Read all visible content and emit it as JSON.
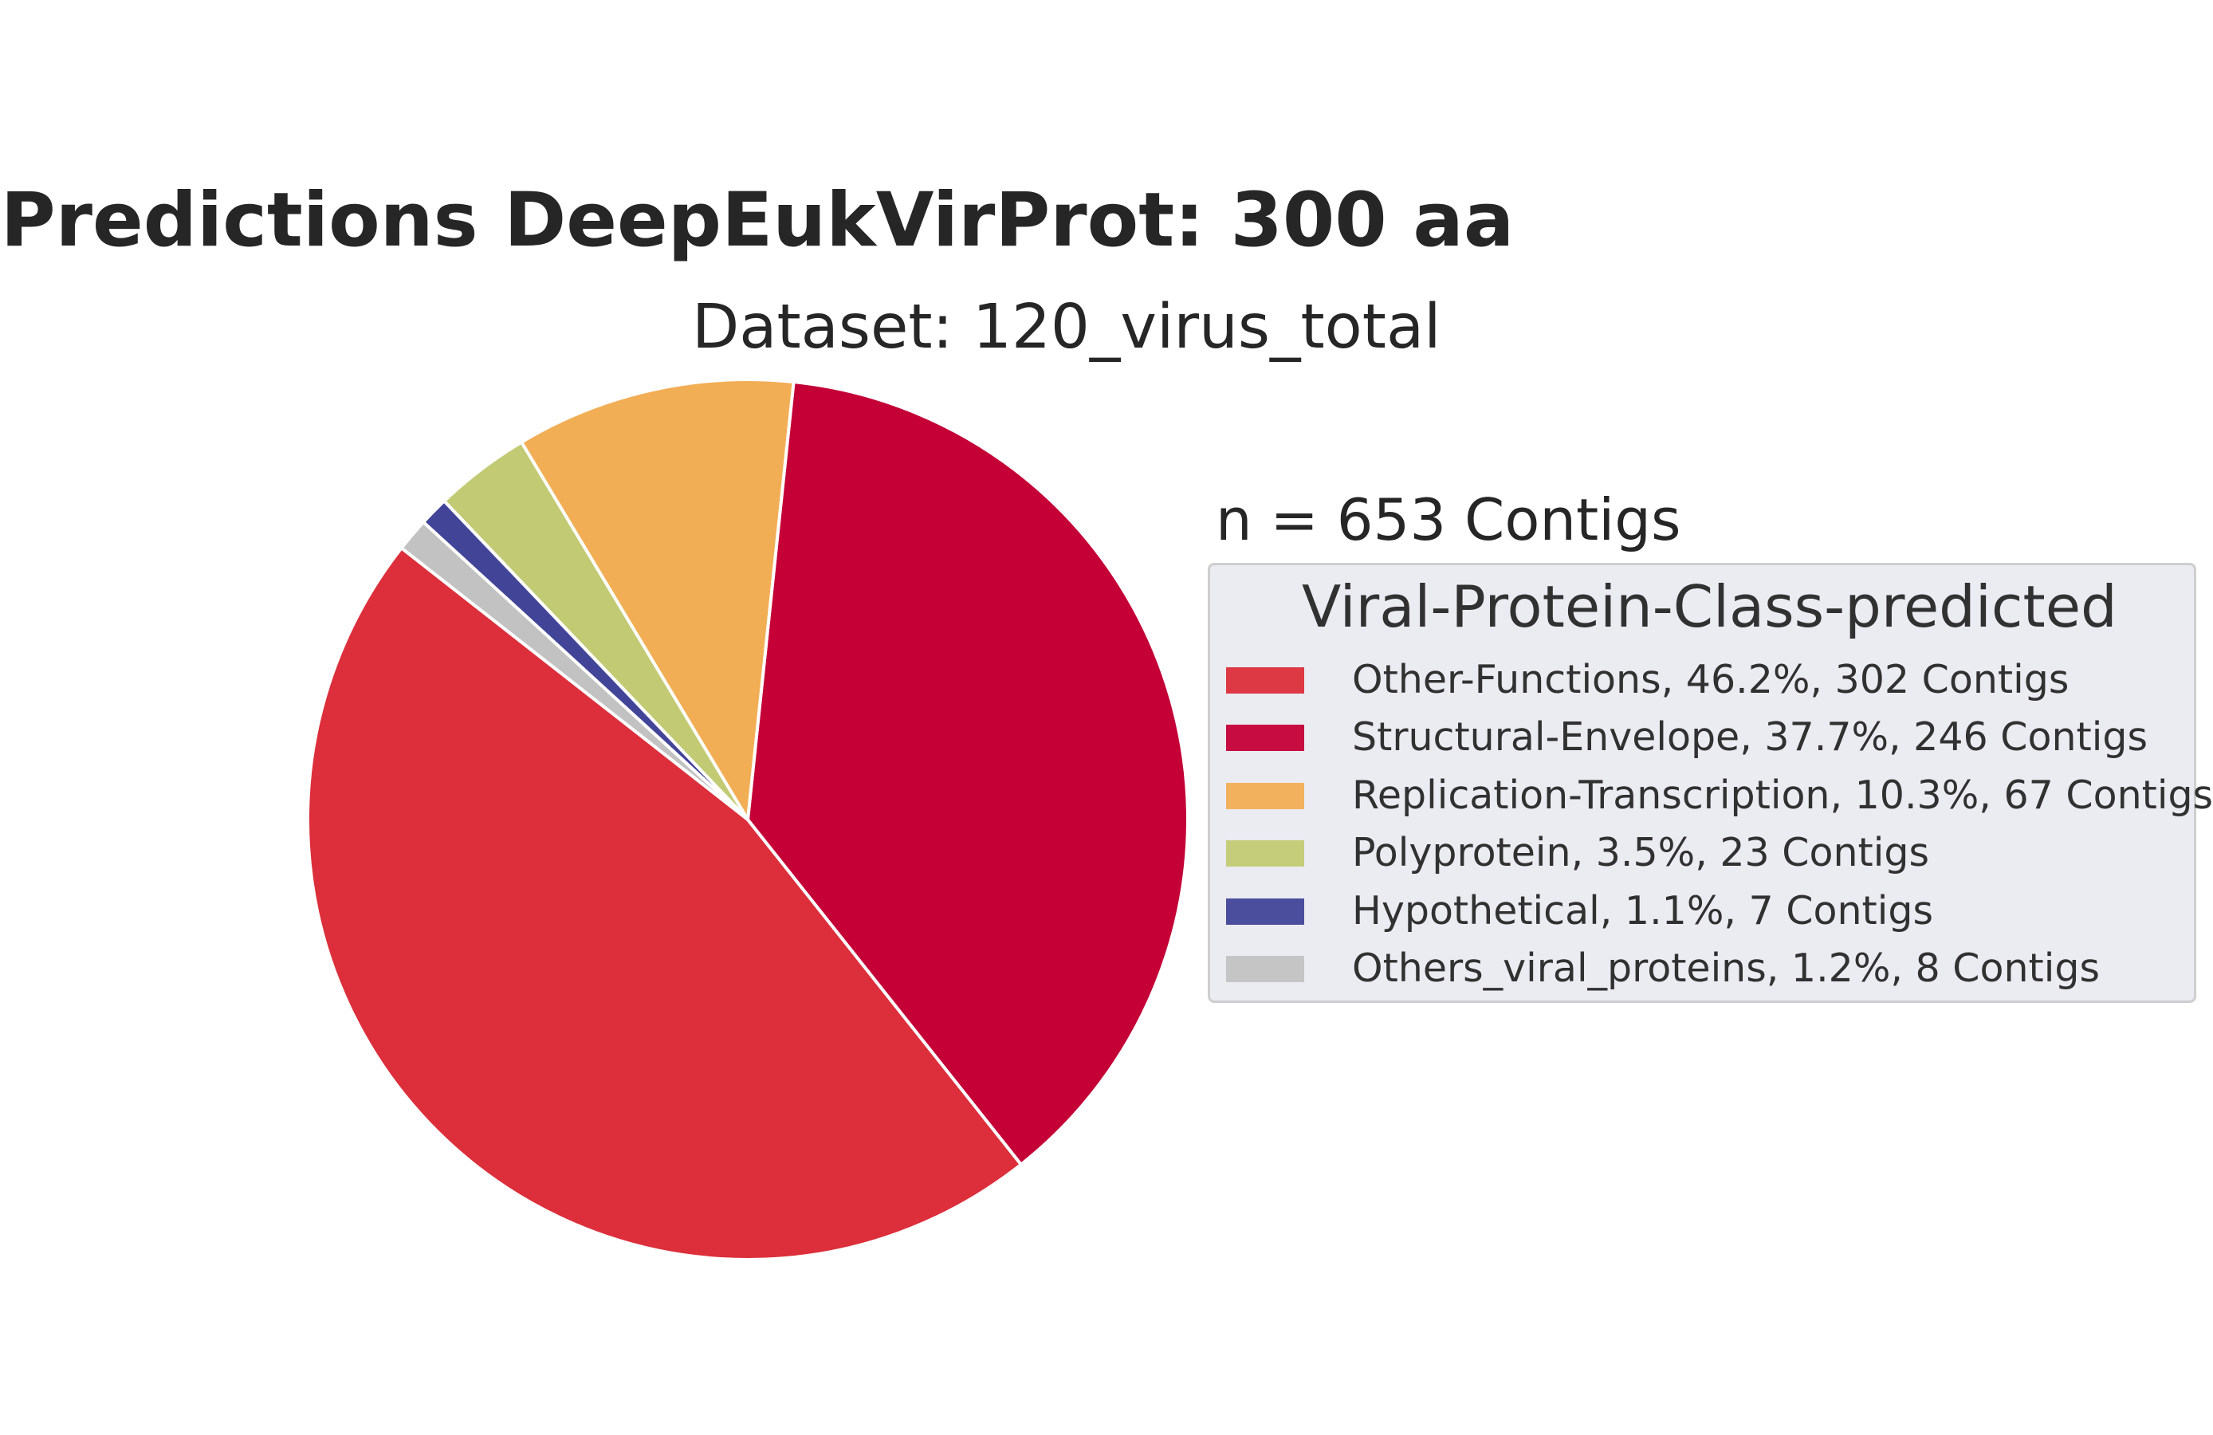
{
  "chart_data": {
    "type": "pie",
    "title": "Predictions DeepEukVirProt: 300 aa",
    "subtitle": "Dataset: 120_virus_total",
    "annotation": "n = 653 Contigs",
    "legend_title": "Viral-Protein-Class-predicted",
    "legend_placement": "right",
    "slices": [
      {
        "label": "Other-Functions, 46.2%, 302 Contigs",
        "value": 302,
        "color": "#dc2f3b"
      },
      {
        "label": "Structural-Envelope, 37.7%, 246 Contigs",
        "value": 246,
        "color": "#c40037"
      },
      {
        "label": "Replication-Transcription, 10.3%, 67 Contigs",
        "value": 67,
        "color": "#f2ae55"
      },
      {
        "label": "Polyprotein, 3.5%, 23 Contigs",
        "value": 23,
        "color": "#c2cb74"
      },
      {
        "label": "Hypothetical, 1.1%, 7 Contigs",
        "value": 7,
        "color": "#424597"
      },
      {
        "label": "Others_viral_proteins, 1.2%, 8 Contigs",
        "value": 8,
        "color": "#c2c2c2"
      }
    ]
  }
}
